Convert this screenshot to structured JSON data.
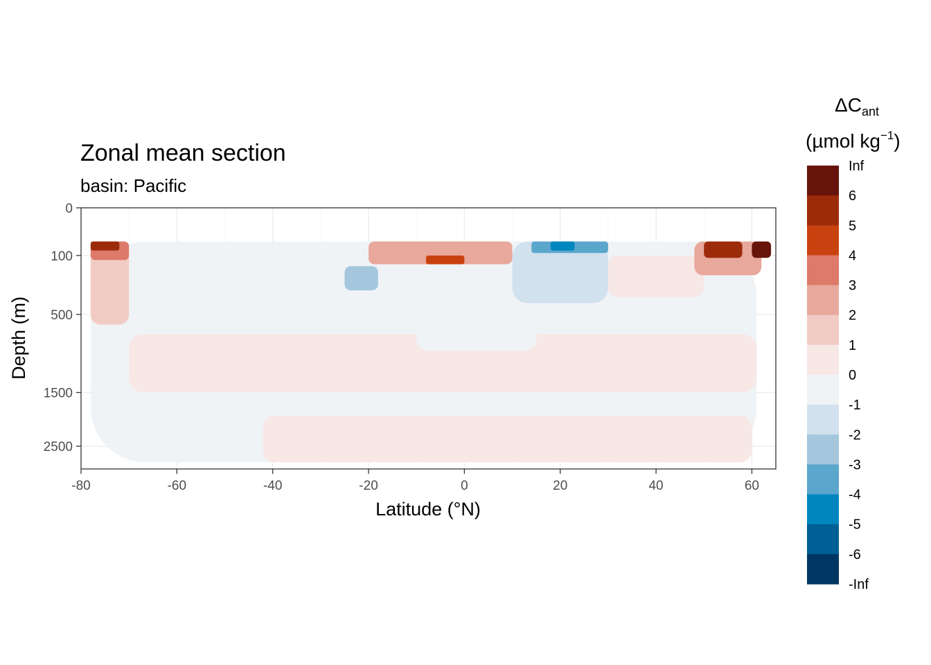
{
  "title": "Zonal mean section",
  "subtitle": "basin: Pacific",
  "legend": {
    "title_main": "ΔC",
    "title_sub": "ant",
    "unit_prefix": "(µmol kg",
    "unit_sup": "−1",
    "unit_suffix": ")",
    "bins": [
      {
        "label": "Inf",
        "color": "#67140a"
      },
      {
        "label": "6",
        "color": "#9c2b0a"
      },
      {
        "label": "5",
        "color": "#c8420f"
      },
      {
        "label": "4",
        "color": "#dd7a6a"
      },
      {
        "label": "3",
        "color": "#e8a89c"
      },
      {
        "label": "2",
        "color": "#f2cbc5"
      },
      {
        "label": "1",
        "color": "#f7e8e6"
      },
      {
        "label": "0",
        "color": "#f0f3f6"
      },
      {
        "label": "-1",
        "color": "#d1e1ee"
      },
      {
        "label": "-2",
        "color": "#a4c7de"
      },
      {
        "label": "-3",
        "color": "#5ba6cd"
      },
      {
        "label": "-4",
        "color": "#0086bf"
      },
      {
        "label": "-5",
        "color": "#005f95"
      },
      {
        "label": "-6",
        "color": "#003762"
      }
    ],
    "bottom_label": "-Inf"
  },
  "chart_data": {
    "type": "heatmap",
    "title": "Zonal mean section",
    "subtitle": "basin: Pacific",
    "xlabel": "Latitude (°N)",
    "ylabel": "Depth (m)",
    "xlim": [
      -80,
      65
    ],
    "ylim": [
      3000,
      0
    ],
    "y_scale": "reversed sqrt",
    "x_ticks": [
      -80,
      -60,
      -40,
      -20,
      0,
      20,
      40,
      60
    ],
    "y_ticks": [
      0,
      100,
      500,
      1500,
      2500
    ],
    "grid": true,
    "legend_position": "right",
    "regions": [
      {
        "x": [
          -78,
          61
        ],
        "depth": [
          50,
          2850
        ],
        "value": 0
      },
      {
        "x": [
          -70,
          61
        ],
        "depth": [
          700,
          1500
        ],
        "value": 0.5
      },
      {
        "x": [
          -42,
          60
        ],
        "depth": [
          1900,
          2850
        ],
        "value": 0.5
      },
      {
        "x": [
          -78,
          -70
        ],
        "depth": [
          50,
          600
        ],
        "value": 1.5
      },
      {
        "x": [
          -78,
          -70
        ],
        "depth": [
          50,
          120
        ],
        "value": 3.5
      },
      {
        "x": [
          -78,
          -72
        ],
        "depth": [
          50,
          80
        ],
        "value": 5.5
      },
      {
        "x": [
          -60,
          -40
        ],
        "depth": [
          50,
          500
        ],
        "value": -0.5
      },
      {
        "x": [
          -40,
          -10
        ],
        "depth": [
          50,
          450
        ],
        "value": -0.5
      },
      {
        "x": [
          -25,
          -18
        ],
        "depth": [
          150,
          300
        ],
        "value": -2
      },
      {
        "x": [
          -20,
          10
        ],
        "depth": [
          50,
          140
        ],
        "value": 2.5
      },
      {
        "x": [
          -8,
          0
        ],
        "depth": [
          100,
          140
        ],
        "value": 4.5
      },
      {
        "x": [
          -10,
          15
        ],
        "depth": [
          400,
          900
        ],
        "value": -0.5
      },
      {
        "x": [
          10,
          30
        ],
        "depth": [
          50,
          400
        ],
        "value": -1.5
      },
      {
        "x": [
          14,
          30
        ],
        "depth": [
          50,
          90
        ],
        "value": -3.5
      },
      {
        "x": [
          18,
          23
        ],
        "depth": [
          50,
          80
        ],
        "value": -4.5
      },
      {
        "x": [
          30,
          50
        ],
        "depth": [
          100,
          350
        ],
        "value": 0.5
      },
      {
        "x": [
          48,
          62
        ],
        "depth": [
          50,
          200
        ],
        "value": 3
      },
      {
        "x": [
          50,
          58
        ],
        "depth": [
          50,
          110
        ],
        "value": 5.5
      },
      {
        "x": [
          60,
          64
        ],
        "depth": [
          50,
          110
        ],
        "value": 6.5
      }
    ]
  }
}
